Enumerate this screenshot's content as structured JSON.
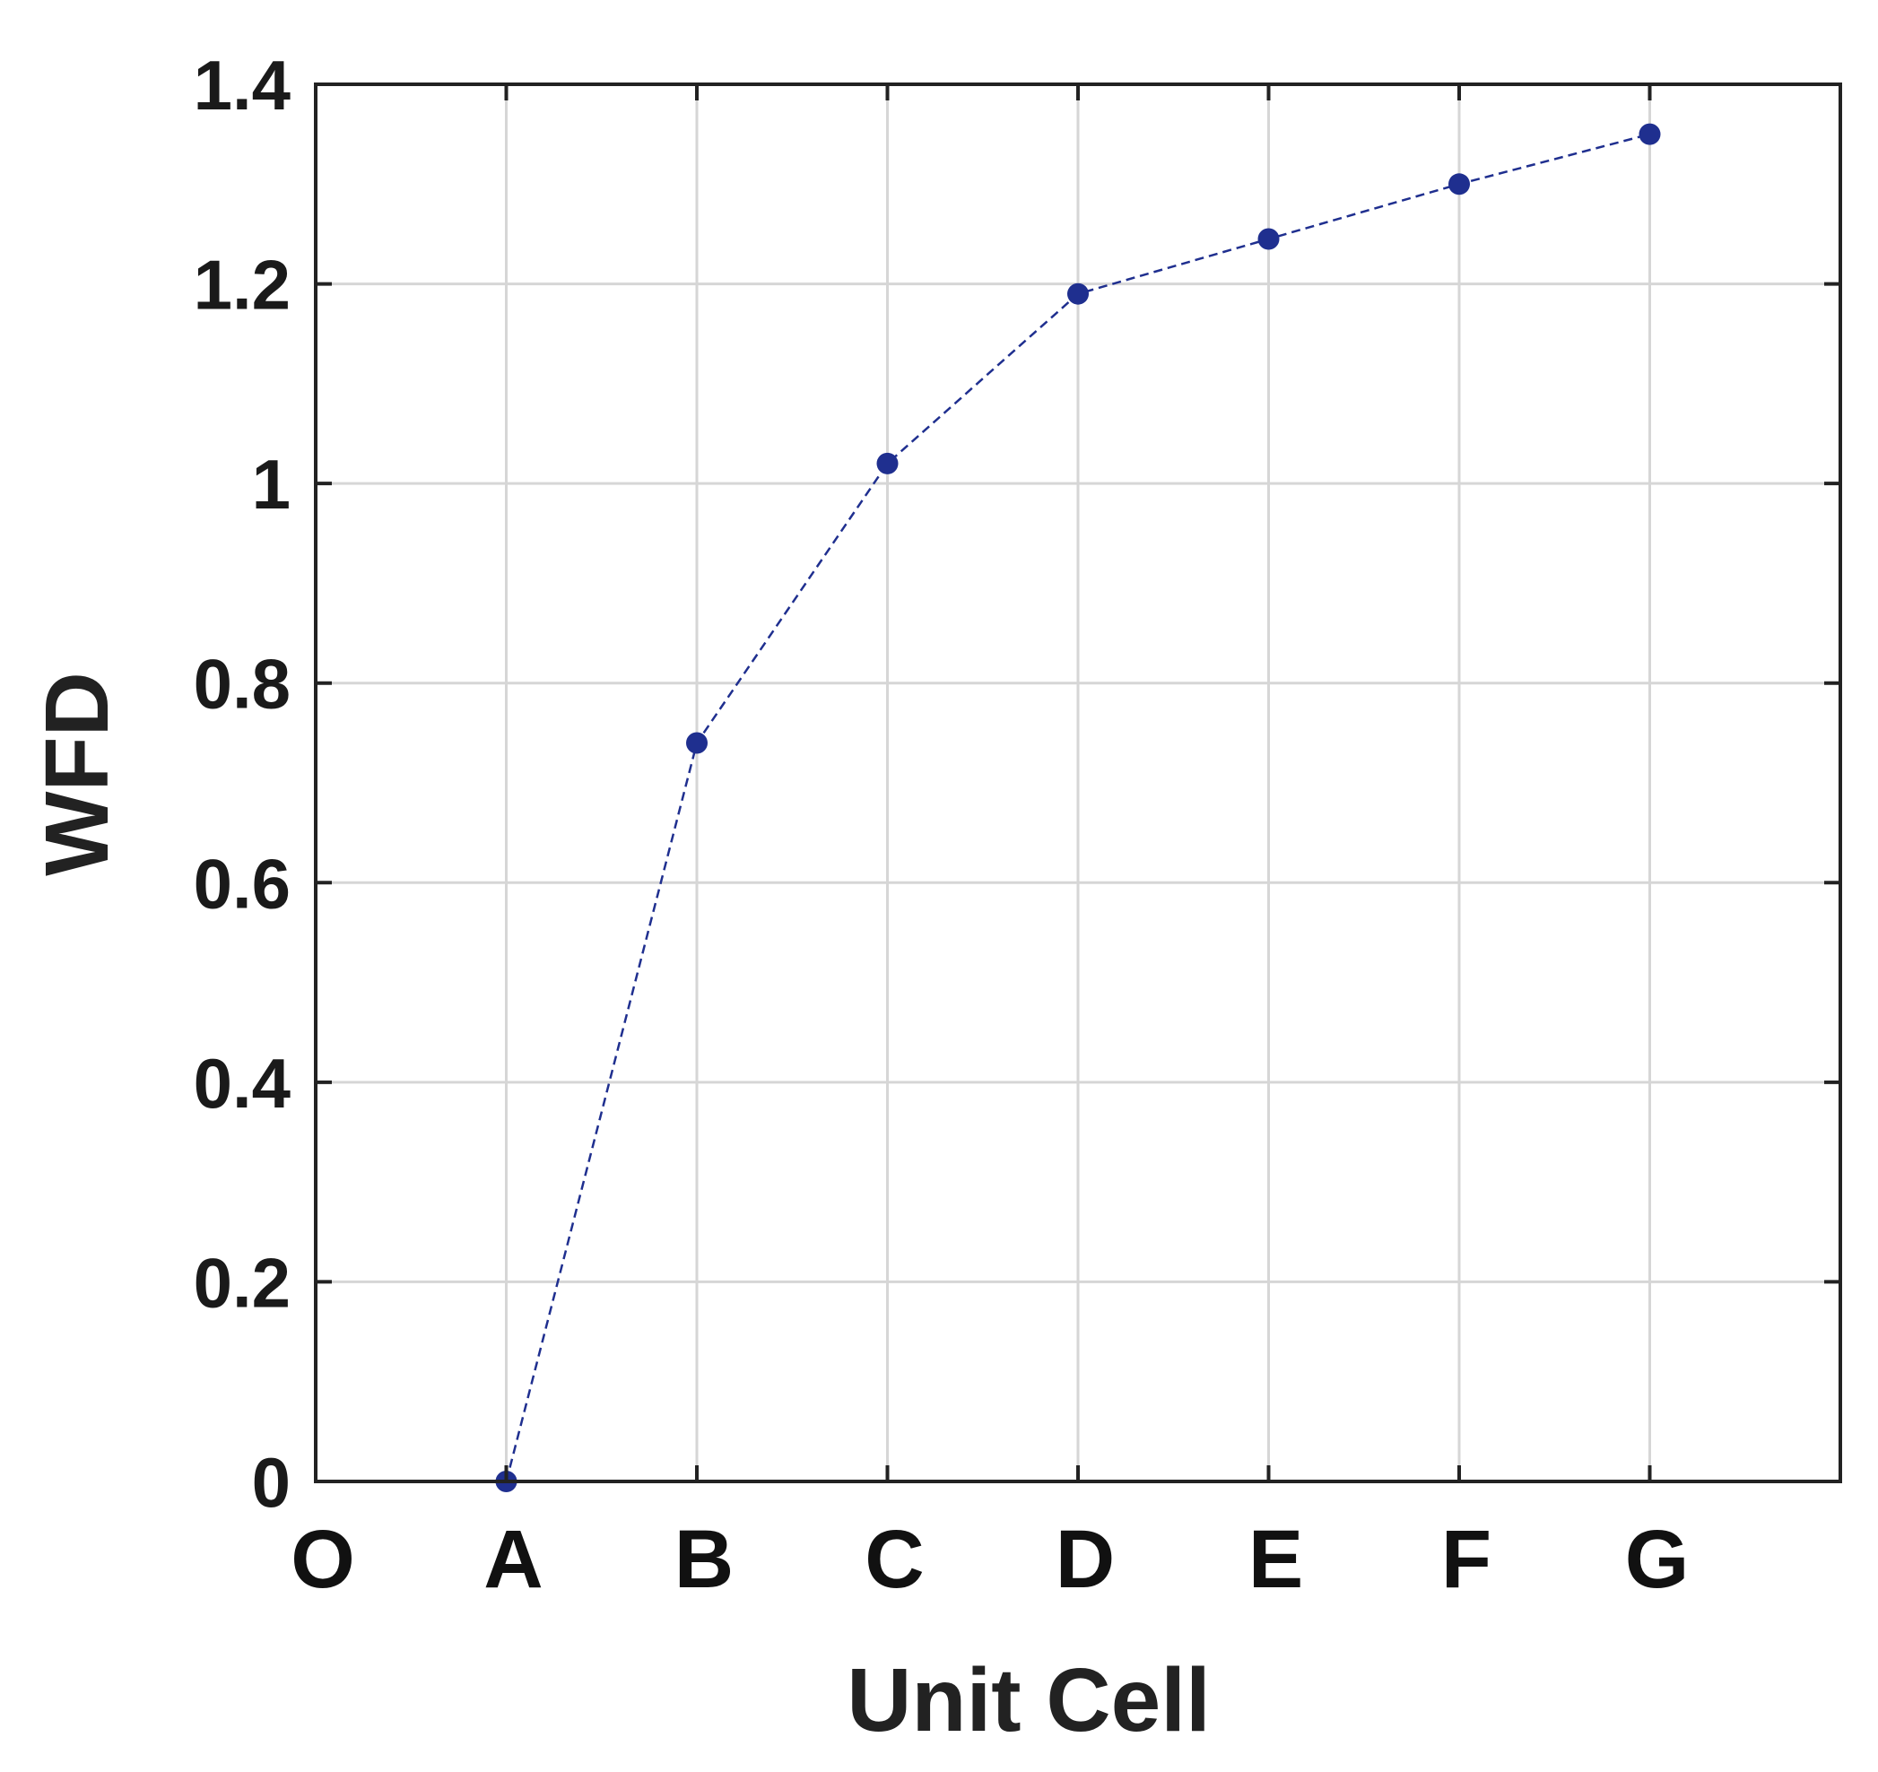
{
  "chart_data": {
    "type": "line",
    "xlabel": "Unit Cell",
    "ylabel": "WFD",
    "categories": [
      "O",
      "A",
      "B",
      "C",
      "D",
      "E",
      "F",
      "G"
    ],
    "x_ticks": [
      "O",
      "A",
      "B",
      "C",
      "D",
      "E",
      "F",
      "G"
    ],
    "y_ticks": [
      "0",
      "0.2",
      "0.4",
      "0.6",
      "0.8",
      "1",
      "1.2",
      "1.4"
    ],
    "ylim": [
      0,
      1.4
    ],
    "xlim": [
      0,
      8
    ],
    "grid": true,
    "series": [
      {
        "x": [
          "A",
          "B",
          "C",
          "D",
          "E",
          "F",
          "G"
        ],
        "values": [
          0,
          0.74,
          1.02,
          1.19,
          1.245,
          1.3,
          1.35
        ],
        "line_style": "dashed",
        "marker": "circle",
        "color": "#1f2f8f"
      }
    ]
  }
}
